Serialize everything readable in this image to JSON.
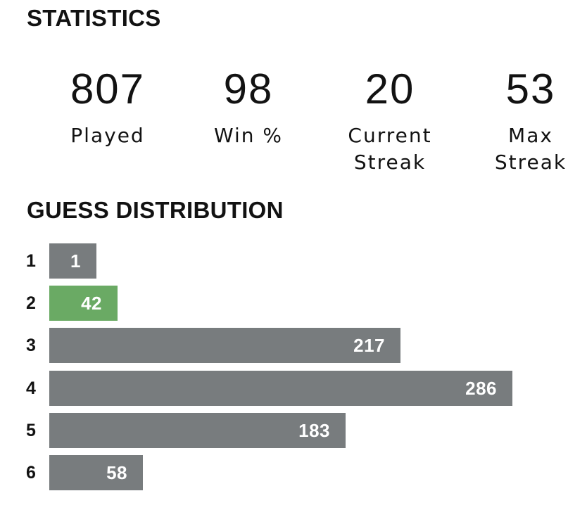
{
  "statistics": {
    "title": "STATISTICS",
    "items": [
      {
        "value": "807",
        "label": "Played"
      },
      {
        "value": "98",
        "label": "Win %"
      },
      {
        "value": "20",
        "label": "Current\nStreak"
      },
      {
        "value": "53",
        "label": "Max\nStreak"
      }
    ]
  },
  "distribution": {
    "title": "GUESS DISTRIBUTION",
    "bar_color": "#787c7e",
    "highlight_color": "#6aaa64",
    "highlight_guess": "2",
    "rows": [
      {
        "guess": "1",
        "count": 1
      },
      {
        "guess": "2",
        "count": 42
      },
      {
        "guess": "3",
        "count": 217
      },
      {
        "guess": "4",
        "count": 286
      },
      {
        "guess": "5",
        "count": 183
      },
      {
        "guess": "6",
        "count": 58
      }
    ]
  }
}
